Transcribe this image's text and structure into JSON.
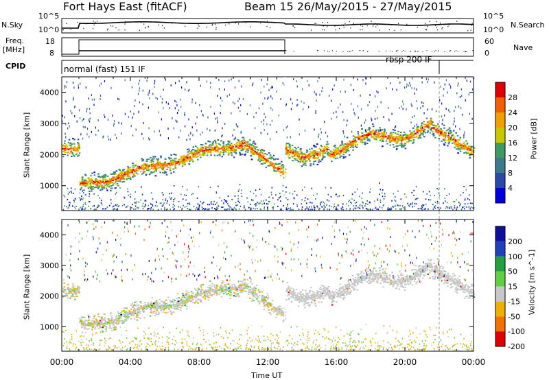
{
  "header": {
    "station": "Fort Hays East (fitACF)",
    "beam_date": "Beam 15 26/May/2015 - 27/May/2015"
  },
  "side_labels": {
    "nsky": "N.Sky",
    "nsearch": "N.Search",
    "freq": "Freq.",
    "mhz": "[MHz]",
    "nave": "Nave",
    "cpid": "CPID"
  },
  "noise_axis": {
    "left_top": "10^5",
    "left_bottom": "10^0",
    "right_top": "10^5",
    "right_bottom": "10^0"
  },
  "freq_axis": {
    "left": [
      "18",
      "8"
    ],
    "right": [
      "60",
      "0"
    ]
  },
  "cpid_modes": [
    "normal (fast) 151 IF",
    "rbsp 200 IF"
  ],
  "chart_data": [
    {
      "type": "heatmap",
      "name": "power",
      "ylabel": "Slant Range [km]",
      "xlabel": "",
      "yticks": [
        "1000",
        "2000",
        "3000",
        "4000"
      ],
      "ylim": [
        200,
        4500
      ],
      "colorbar_label": "Power [dB]",
      "colorbar_ticks": [
        "4",
        "8",
        "12",
        "16",
        "20",
        "24",
        "28"
      ],
      "colors": [
        "#0000dd",
        "#2a4aa8",
        "#3a7a8a",
        "#3f9a60",
        "#c8c800",
        "#f0a000",
        "#f06000",
        "#e00000"
      ],
      "range_clim": [
        0,
        32
      ]
    },
    {
      "type": "heatmap",
      "name": "velocity",
      "ylabel": "Slant Range [km]",
      "xlabel": "Time UT",
      "xticks": [
        "00:00",
        "04:00",
        "08:00",
        "12:00",
        "16:00",
        "20:00",
        "00:00"
      ],
      "yticks": [
        "1000",
        "2000",
        "3000",
        "4000"
      ],
      "ylim": [
        200,
        4500
      ],
      "colorbar_label": "Velocity [m s^-1]",
      "colorbar_ticks": [
        "200",
        "100",
        "50",
        "15",
        "-15",
        "-50",
        "-100",
        "-200"
      ],
      "colors": [
        "#1010a0",
        "#2040c0",
        "#20a040",
        "#60d040",
        "#c8c8c8",
        "#f0b000",
        "#f07000",
        "#e00000"
      ]
    }
  ]
}
